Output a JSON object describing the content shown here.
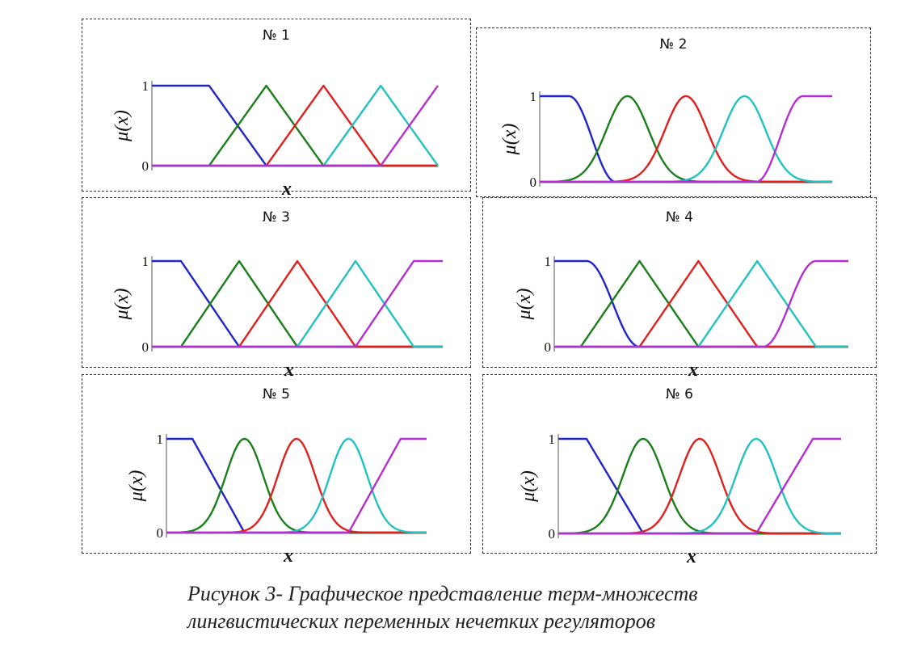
{
  "colors": {
    "blue": "#1f25c8",
    "green": "#1a7f1a",
    "red": "#e0201c",
    "cyan": "#22c2c0",
    "magenta": "#b52ed0",
    "axis": "#555555"
  },
  "caption": {
    "line1": "Рисунок 3- Графическое представление терм-множеств",
    "line2": "лингвистических переменных нечетких регуляторов"
  },
  "chart_data": [
    {
      "type": "line",
      "title": "№ 1",
      "xlabel": "x",
      "ylabel": "μ(x)",
      "yticks": [
        "0",
        "1"
      ],
      "ylim": [
        0,
        1
      ],
      "series": [
        {
          "shape": "z-linear",
          "color": "blue",
          "points": [
            1,
            2
          ]
        },
        {
          "shape": "triangle",
          "color": "green",
          "points": [
            1,
            2,
            3
          ]
        },
        {
          "shape": "triangle",
          "color": "red",
          "points": [
            2,
            3,
            4
          ]
        },
        {
          "shape": "triangle",
          "color": "cyan",
          "points": [
            3,
            4,
            5
          ]
        },
        {
          "shape": "s-linear",
          "color": "magenta",
          "points": [
            4,
            5
          ]
        }
      ]
    },
    {
      "type": "line",
      "title": "№ 2",
      "xlabel": "",
      "ylabel": "μ(x)",
      "yticks": [
        "0",
        "1"
      ],
      "ylim": [
        0,
        1
      ],
      "series": [
        {
          "shape": "z-smooth",
          "color": "blue",
          "points": [
            0.5,
            1.3
          ]
        },
        {
          "shape": "gauss",
          "color": "green",
          "points": [
            1.5
          ]
        },
        {
          "shape": "gauss",
          "color": "red",
          "points": [
            2.5
          ]
        },
        {
          "shape": "gauss",
          "color": "cyan",
          "points": [
            3.5
          ]
        },
        {
          "shape": "s-smooth",
          "color": "magenta",
          "points": [
            3.7,
            4.5
          ]
        }
      ]
    },
    {
      "type": "line",
      "title": "№ 3",
      "xlabel": "x",
      "ylabel": "μ(x)",
      "yticks": [
        "0",
        "1"
      ],
      "ylim": [
        0,
        1
      ],
      "series": [
        {
          "shape": "z-linear",
          "color": "blue",
          "points": [
            0.5,
            1.5
          ]
        },
        {
          "shape": "triangle",
          "color": "green",
          "points": [
            0.5,
            1.5,
            2.5
          ]
        },
        {
          "shape": "triangle",
          "color": "red",
          "points": [
            1.5,
            2.5,
            3.5
          ]
        },
        {
          "shape": "triangle",
          "color": "cyan",
          "points": [
            2.5,
            3.5,
            4.5
          ]
        },
        {
          "shape": "s-linear",
          "color": "magenta",
          "points": [
            3.5,
            4.5
          ]
        }
      ]
    },
    {
      "type": "line",
      "title": "№ 4",
      "xlabel": "x",
      "ylabel": "μ(x)",
      "yticks": [
        "0",
        "1"
      ],
      "ylim": [
        0,
        1
      ],
      "series": [
        {
          "shape": "z-smooth",
          "color": "blue",
          "points": [
            0.55,
            1.45
          ]
        },
        {
          "shape": "triangle",
          "color": "green",
          "points": [
            0.45,
            1.45,
            2.45
          ]
        },
        {
          "shape": "triangle",
          "color": "red",
          "points": [
            1.45,
            2.45,
            3.45
          ]
        },
        {
          "shape": "triangle",
          "color": "cyan",
          "points": [
            2.45,
            3.45,
            4.45
          ]
        },
        {
          "shape": "s-smooth",
          "color": "magenta",
          "points": [
            3.55,
            4.45
          ]
        }
      ]
    },
    {
      "type": "line",
      "title": "№ 5",
      "xlabel": "x",
      "ylabel": "μ(x)",
      "yticks": [
        "0",
        "1"
      ],
      "ylim": [
        0,
        1
      ],
      "series": [
        {
          "shape": "z-linear",
          "color": "blue",
          "points": [
            0.5,
            1.5
          ]
        },
        {
          "shape": "gauss",
          "color": "green",
          "points": [
            1.5
          ]
        },
        {
          "shape": "gauss",
          "color": "red",
          "points": [
            2.5
          ]
        },
        {
          "shape": "gauss",
          "color": "cyan",
          "points": [
            3.5
          ]
        },
        {
          "shape": "s-linear",
          "color": "magenta",
          "points": [
            3.5,
            4.5
          ]
        }
      ]
    },
    {
      "type": "line",
      "title": "№ 6",
      "xlabel": "x",
      "ylabel": "μ(x)",
      "yticks": [
        "0",
        "1"
      ],
      "ylim": [
        0,
        1
      ],
      "series": [
        {
          "shape": "z-linear",
          "color": "blue",
          "points": [
            0.5,
            1.5
          ]
        },
        {
          "shape": "gauss",
          "color": "green",
          "points": [
            1.5
          ]
        },
        {
          "shape": "gauss",
          "color": "red",
          "points": [
            2.5
          ]
        },
        {
          "shape": "gauss",
          "color": "cyan",
          "points": [
            3.5
          ]
        },
        {
          "shape": "s-linear",
          "color": "magenta",
          "points": [
            3.5,
            4.5
          ]
        }
      ]
    }
  ]
}
